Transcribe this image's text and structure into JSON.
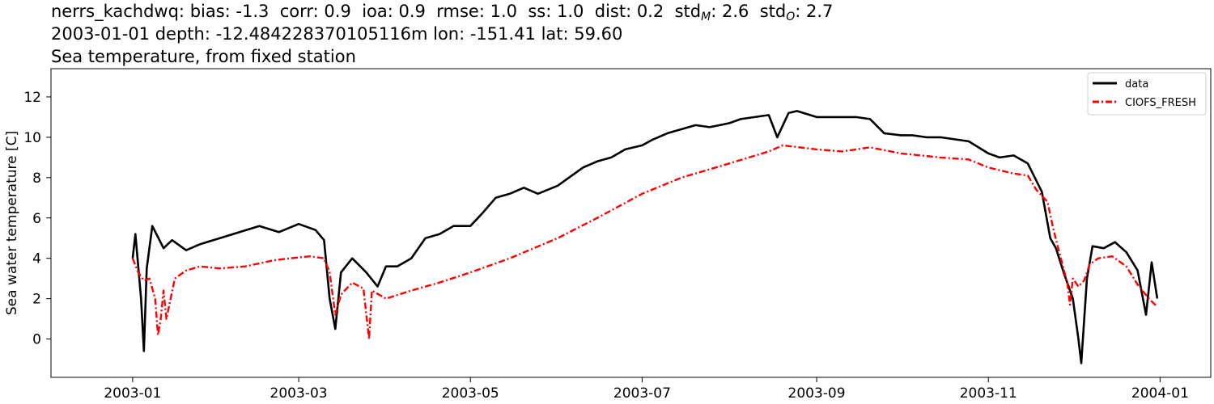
{
  "title": {
    "line1": {
      "station": "nerrs_kachdwq:",
      "bias": "bias: -1.3",
      "corr": "corr: 0.9",
      "ioa": "ioa: 0.9",
      "rmse": "rmse: 1.0",
      "ss": "ss: 1.0",
      "dist": "dist: 0.2",
      "stdM_label": "std",
      "stdM_sub": "M",
      "stdM_value": ": 2.6",
      "stdO_label": "std",
      "stdO_sub": "O",
      "stdO_value": ": 2.7"
    },
    "line2": "2003-01-01 depth: -12.484228370105116m lon: -151.41 lat: 59.60",
    "line3": "Sea temperature, from fixed station"
  },
  "chart_data": {
    "type": "line",
    "xlabel": "",
    "ylabel": "Sea water temperature [C]",
    "x_domain": [
      "2002-12-03",
      "2004-01-19"
    ],
    "ylim": [
      -1.9,
      13.4
    ],
    "x_ticks": [
      "2003-01",
      "2003-03",
      "2003-05",
      "2003-07",
      "2003-09",
      "2003-11",
      "2004-01"
    ],
    "y_ticks": [
      0,
      2,
      4,
      6,
      8,
      10,
      12
    ],
    "grid": false,
    "legend_position": "top-right",
    "series": [
      {
        "name": "data",
        "color": "#000000",
        "style": "solid",
        "points": [
          [
            "2003-01-01",
            4.0
          ],
          [
            "2003-01-02",
            5.2
          ],
          [
            "2003-01-04",
            2.0
          ],
          [
            "2003-01-05",
            -0.6
          ],
          [
            "2003-01-06",
            3.5
          ],
          [
            "2003-01-08",
            5.6
          ],
          [
            "2003-01-12",
            4.5
          ],
          [
            "2003-01-15",
            4.9
          ],
          [
            "2003-01-20",
            4.4
          ],
          [
            "2003-01-25",
            4.7
          ],
          [
            "2003-02-01",
            5.0
          ],
          [
            "2003-02-08",
            5.3
          ],
          [
            "2003-02-15",
            5.6
          ],
          [
            "2003-02-22",
            5.3
          ],
          [
            "2003-03-01",
            5.7
          ],
          [
            "2003-03-07",
            5.4
          ],
          [
            "2003-03-10",
            4.9
          ],
          [
            "2003-03-12",
            2.0
          ],
          [
            "2003-03-14",
            0.5
          ],
          [
            "2003-03-16",
            3.3
          ],
          [
            "2003-03-20",
            4.0
          ],
          [
            "2003-03-25",
            3.3
          ],
          [
            "2003-03-29",
            2.6
          ],
          [
            "2003-04-01",
            3.6
          ],
          [
            "2003-04-05",
            3.6
          ],
          [
            "2003-04-10",
            4.0
          ],
          [
            "2003-04-15",
            5.0
          ],
          [
            "2003-04-20",
            5.2
          ],
          [
            "2003-04-25",
            5.6
          ],
          [
            "2003-05-01",
            5.6
          ],
          [
            "2003-05-05",
            6.2
          ],
          [
            "2003-05-10",
            7.0
          ],
          [
            "2003-05-15",
            7.2
          ],
          [
            "2003-05-20",
            7.5
          ],
          [
            "2003-05-25",
            7.2
          ],
          [
            "2003-06-01",
            7.6
          ],
          [
            "2003-06-05",
            8.0
          ],
          [
            "2003-06-10",
            8.5
          ],
          [
            "2003-06-15",
            8.8
          ],
          [
            "2003-06-20",
            9.0
          ],
          [
            "2003-06-25",
            9.4
          ],
          [
            "2003-07-01",
            9.6
          ],
          [
            "2003-07-05",
            9.9
          ],
          [
            "2003-07-10",
            10.2
          ],
          [
            "2003-07-15",
            10.4
          ],
          [
            "2003-07-20",
            10.6
          ],
          [
            "2003-07-25",
            10.5
          ],
          [
            "2003-08-01",
            10.7
          ],
          [
            "2003-08-05",
            10.9
          ],
          [
            "2003-08-10",
            11.0
          ],
          [
            "2003-08-15",
            11.1
          ],
          [
            "2003-08-18",
            10.0
          ],
          [
            "2003-08-22",
            11.2
          ],
          [
            "2003-08-25",
            11.3
          ],
          [
            "2003-09-01",
            11.0
          ],
          [
            "2003-09-10",
            11.0
          ],
          [
            "2003-09-15",
            11.0
          ],
          [
            "2003-09-20",
            10.9
          ],
          [
            "2003-09-25",
            10.2
          ],
          [
            "2003-10-01",
            10.1
          ],
          [
            "2003-10-05",
            10.1
          ],
          [
            "2003-10-10",
            10.0
          ],
          [
            "2003-10-15",
            10.0
          ],
          [
            "2003-10-20",
            9.9
          ],
          [
            "2003-10-25",
            9.8
          ],
          [
            "2003-11-01",
            9.2
          ],
          [
            "2003-11-05",
            9.0
          ],
          [
            "2003-11-10",
            9.1
          ],
          [
            "2003-11-15",
            8.7
          ],
          [
            "2003-11-20",
            7.3
          ],
          [
            "2003-11-23",
            5.0
          ],
          [
            "2003-11-25",
            4.5
          ],
          [
            "2003-11-28",
            3.2
          ],
          [
            "2003-12-01",
            2.0
          ],
          [
            "2003-12-03",
            0.0
          ],
          [
            "2003-12-04",
            -1.2
          ],
          [
            "2003-12-06",
            3.0
          ],
          [
            "2003-12-08",
            4.6
          ],
          [
            "2003-12-12",
            4.5
          ],
          [
            "2003-12-16",
            4.8
          ],
          [
            "2003-12-20",
            4.3
          ],
          [
            "2003-12-24",
            3.4
          ],
          [
            "2003-12-27",
            1.2
          ],
          [
            "2003-12-29",
            3.8
          ],
          [
            "2003-12-31",
            2.0
          ]
        ]
      },
      {
        "name": "CIOFS_FRESH",
        "color": "#ff0000",
        "style": "dashdot",
        "points": [
          [
            "2003-01-01",
            4.0
          ],
          [
            "2003-01-03",
            3.3
          ],
          [
            "2003-01-05",
            2.9
          ],
          [
            "2003-01-07",
            3.0
          ],
          [
            "2003-01-09",
            2.0
          ],
          [
            "2003-01-10",
            0.2
          ],
          [
            "2003-01-11",
            1.0
          ],
          [
            "2003-01-12",
            2.4
          ],
          [
            "2003-01-13",
            1.0
          ],
          [
            "2003-01-16",
            3.0
          ],
          [
            "2003-01-20",
            3.4
          ],
          [
            "2003-01-25",
            3.6
          ],
          [
            "2003-02-01",
            3.5
          ],
          [
            "2003-02-10",
            3.6
          ],
          [
            "2003-02-20",
            3.9
          ],
          [
            "2003-02-26",
            4.0
          ],
          [
            "2003-03-05",
            4.1
          ],
          [
            "2003-03-10",
            4.0
          ],
          [
            "2003-03-12",
            3.3
          ],
          [
            "2003-03-14",
            1.2
          ],
          [
            "2003-03-16",
            2.2
          ],
          [
            "2003-03-20",
            2.8
          ],
          [
            "2003-03-24",
            2.5
          ],
          [
            "2003-03-26",
            0.0
          ],
          [
            "2003-03-27",
            2.4
          ],
          [
            "2003-04-01",
            2.0
          ],
          [
            "2003-04-10",
            2.4
          ],
          [
            "2003-04-20",
            2.8
          ],
          [
            "2003-05-01",
            3.3
          ],
          [
            "2003-05-15",
            4.0
          ],
          [
            "2003-06-01",
            5.0
          ],
          [
            "2003-06-15",
            6.0
          ],
          [
            "2003-07-01",
            7.2
          ],
          [
            "2003-07-15",
            8.0
          ],
          [
            "2003-08-01",
            8.7
          ],
          [
            "2003-08-15",
            9.3
          ],
          [
            "2003-08-20",
            9.6
          ],
          [
            "2003-09-01",
            9.4
          ],
          [
            "2003-09-10",
            9.3
          ],
          [
            "2003-09-20",
            9.5
          ],
          [
            "2003-10-01",
            9.2
          ],
          [
            "2003-10-15",
            9.0
          ],
          [
            "2003-10-25",
            8.9
          ],
          [
            "2003-11-01",
            8.5
          ],
          [
            "2003-11-10",
            8.2
          ],
          [
            "2003-11-15",
            8.1
          ],
          [
            "2003-11-18",
            7.4
          ],
          [
            "2003-11-22",
            6.8
          ],
          [
            "2003-11-24",
            5.5
          ],
          [
            "2003-11-26",
            4.4
          ],
          [
            "2003-11-29",
            2.8
          ],
          [
            "2003-11-30",
            1.7
          ],
          [
            "2003-12-01",
            3.0
          ],
          [
            "2003-12-03",
            2.6
          ],
          [
            "2003-12-05",
            2.9
          ],
          [
            "2003-12-07",
            3.7
          ],
          [
            "2003-12-10",
            4.0
          ],
          [
            "2003-12-15",
            4.1
          ],
          [
            "2003-12-20",
            3.6
          ],
          [
            "2003-12-24",
            2.7
          ],
          [
            "2003-12-28",
            2.0
          ],
          [
            "2003-12-31",
            1.6
          ]
        ]
      }
    ]
  }
}
